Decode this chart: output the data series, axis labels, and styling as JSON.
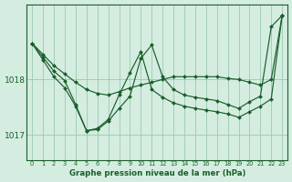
{
  "title": "Graphe pression niveau de la mer (hPa)",
  "bg_color": "#d4ede0",
  "grid_color": "#9dc8b0",
  "line_color": "#1a5e2a",
  "marker_color": "#1a5e2a",
  "x_labels": [
    "0",
    "1",
    "2",
    "3",
    "4",
    "5",
    "6",
    "7",
    "8",
    "9",
    "10",
    "11",
    "12",
    "13",
    "14",
    "15",
    "16",
    "17",
    "18",
    "19",
    "20",
    "21",
    "22",
    "23"
  ],
  "yticks": [
    1017,
    1018
  ],
  "ylim": [
    1016.55,
    1019.35
  ],
  "xlim": [
    -0.5,
    23.5
  ],
  "lines": [
    [
      1018.65,
      1018.45,
      1018.25,
      1018.1,
      1017.95,
      1017.82,
      1017.75,
      1017.72,
      1017.78,
      1017.85,
      1017.9,
      1017.95,
      1018.0,
      1018.05,
      1018.05,
      1018.05,
      1018.05,
      1018.05,
      1018.02,
      1018.0,
      1017.95,
      1017.9,
      1018.0,
      1019.15
    ],
    [
      1018.65,
      1018.4,
      1018.15,
      1017.98,
      1017.55,
      1017.08,
      1017.1,
      1017.25,
      1017.48,
      1017.7,
      1018.38,
      1018.62,
      1018.05,
      1017.82,
      1017.72,
      1017.68,
      1017.65,
      1017.62,
      1017.55,
      1017.48,
      1017.6,
      1017.7,
      1018.95,
      1019.15
    ],
    [
      1018.65,
      1018.35,
      1018.05,
      1017.85,
      1017.52,
      1017.08,
      1017.12,
      1017.28,
      1017.72,
      1018.12,
      1018.5,
      1017.82,
      1017.68,
      1017.58,
      1017.52,
      1017.48,
      1017.45,
      1017.42,
      1017.38,
      1017.32,
      1017.42,
      1017.52,
      1017.65,
      1019.15
    ]
  ]
}
